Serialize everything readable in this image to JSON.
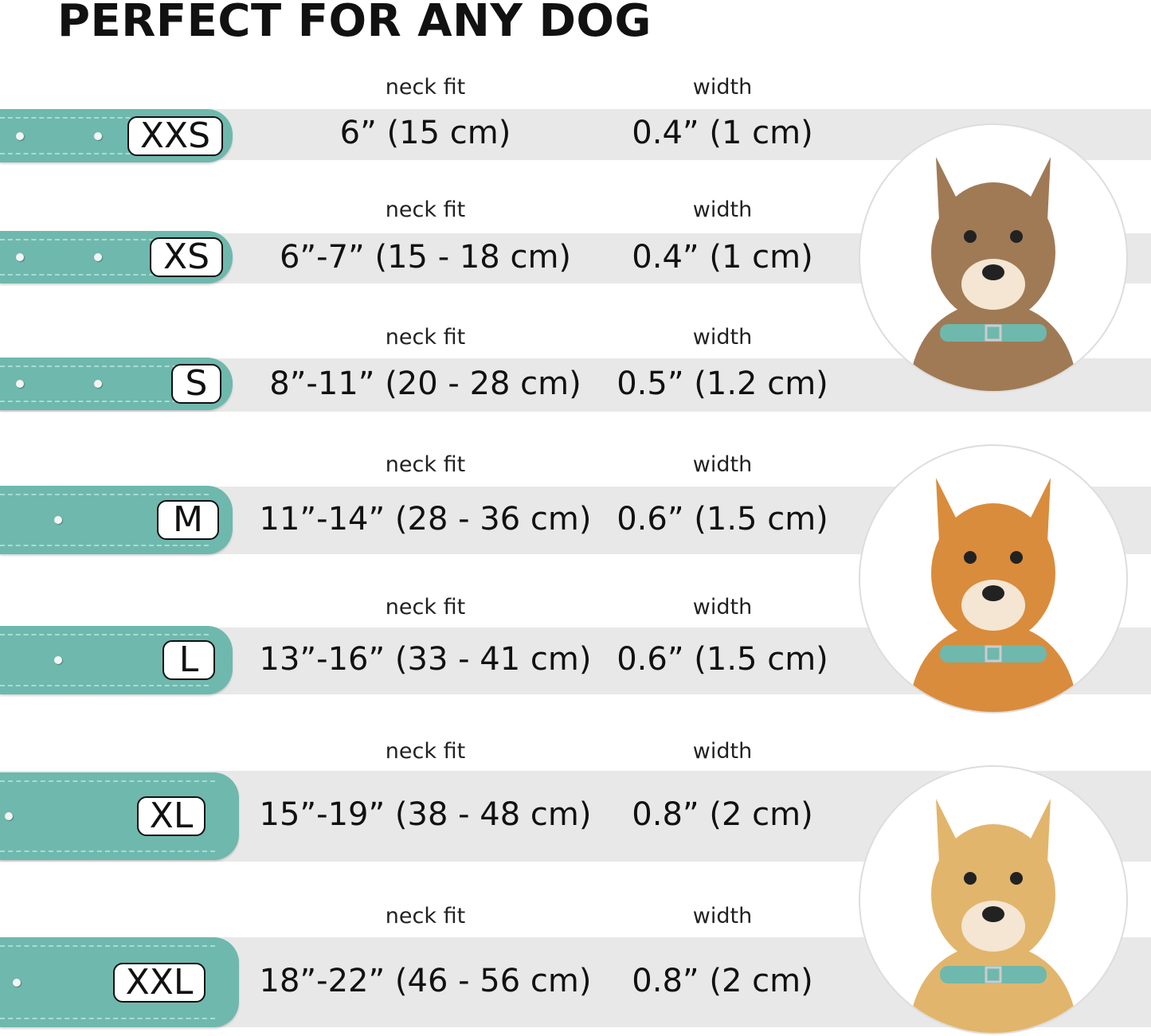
{
  "title": "PERFECT FOR ANY DOG",
  "colors": {
    "collar": "#6fb8ad",
    "band": "#e8e8e8"
  },
  "rows": [
    {
      "size": "XXS",
      "neck_fit_label": "neck fit",
      "neck_fit": "6” (15 cm)",
      "width_label": "width",
      "width": "0.4” (1 cm)"
    },
    {
      "size": "XS",
      "neck_fit_label": "neck fit",
      "neck_fit": "6”-7” (15 - 18 cm)",
      "width_label": "width",
      "width": "0.4” (1 cm)"
    },
    {
      "size": "S",
      "neck_fit_label": "neck fit",
      "neck_fit": "8”-11” (20 - 28 cm)",
      "width_label": "width",
      "width": "0.5” (1.2 cm)"
    },
    {
      "size": "M",
      "neck_fit_label": "neck fit",
      "neck_fit": "11”-14” (28 - 36 cm)",
      "width_label": "width",
      "width": "0.6” (1.5 cm)"
    },
    {
      "size": "L",
      "neck_fit_label": "neck fit",
      "neck_fit": "13”-16” (33 - 41 cm)",
      "width_label": "width",
      "width": "0.6” (1.5 cm)"
    },
    {
      "size": "XL",
      "neck_fit_label": "neck fit",
      "neck_fit": "15”-19” (38 - 48 cm)",
      "width_label": "width",
      "width": "0.8” (2 cm)"
    },
    {
      "size": "XXL",
      "neck_fit_label": "neck fit",
      "neck_fit": "18”-22” (46 - 56 cm)",
      "width_label": "width",
      "width": "0.8” (2 cm)"
    }
  ],
  "dog_photos": [
    {
      "icon": "terrier-dog-photo",
      "fur": "#a07a55"
    },
    {
      "icon": "corgi-dog-photo",
      "fur": "#d98c3c"
    },
    {
      "icon": "labrador-dog-photo",
      "fur": "#e2b56c"
    }
  ]
}
